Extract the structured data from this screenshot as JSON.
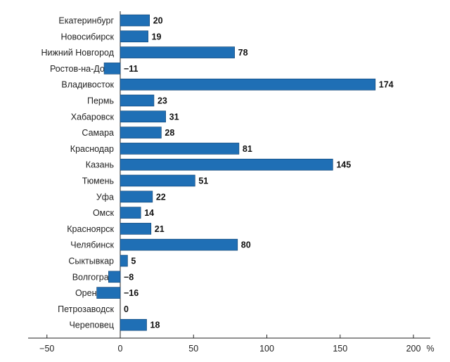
{
  "chart_data": {
    "type": "bar",
    "orientation": "horizontal",
    "categories": [
      "Екатеринбург",
      "Новосибирск",
      "Нижний Новгород",
      "Ростов-на-Дону",
      "Владивосток",
      "Пермь",
      "Хабаровск",
      "Самара",
      "Краснодар",
      "Казань",
      "Тюмень",
      "Уфа",
      "Омск",
      "Красноярск",
      "Челябинск",
      "Сыктывкар",
      "Волгоград",
      "Оренбург",
      "Петрозаводск",
      "Череповец"
    ],
    "values": [
      20,
      19,
      78,
      -11,
      174,
      23,
      31,
      28,
      81,
      145,
      51,
      22,
      14,
      21,
      80,
      5,
      -8,
      -16,
      0,
      18
    ],
    "value_labels": [
      "20",
      "19",
      "78",
      "−11",
      "174",
      "23",
      "31",
      "28",
      "81",
      "145",
      "51",
      "22",
      "14",
      "21",
      "80",
      "5",
      "−8",
      "−16",
      "0",
      "18"
    ],
    "x_ticks": [
      -50,
      0,
      50,
      100,
      150,
      200
    ],
    "x_tick_labels": [
      "−50",
      "0",
      "50",
      "100",
      "150",
      "200"
    ],
    "x_unit": "%",
    "xlim": [
      -50,
      200
    ],
    "bar_color": "#1f6fb5",
    "grid": false,
    "legend": "none"
  }
}
